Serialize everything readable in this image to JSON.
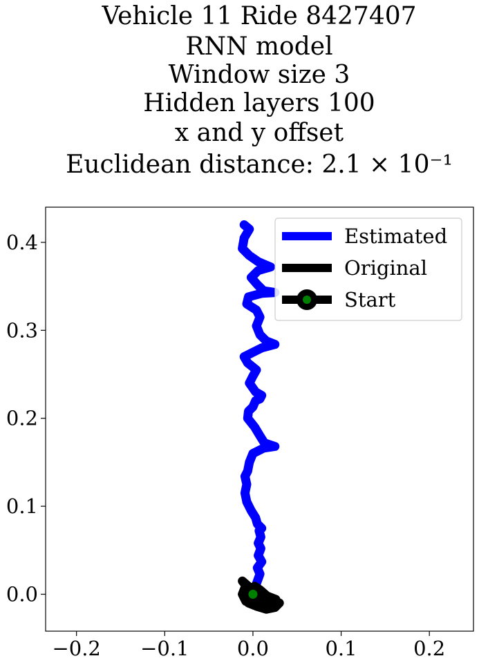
{
  "chart_data": {
    "type": "line",
    "title_lines": [
      "Vehicle 11 Ride 8427407",
      "RNN model",
      "Window size 3",
      "Hidden layers 100",
      "x and y offset",
      "Euclidean distance: 2.1 × 10⁻¹"
    ],
    "xlabel": "",
    "ylabel": "",
    "xlim": [
      -0.235,
      0.25
    ],
    "ylim": [
      -0.042,
      0.44
    ],
    "xticks": [
      -0.2,
      -0.1,
      0.0,
      0.1,
      0.2
    ],
    "xtick_labels": [
      "−0.2",
      "−0.1",
      "0.0",
      "0.1",
      "0.2"
    ],
    "yticks": [
      0.0,
      0.1,
      0.2,
      0.3,
      0.4
    ],
    "ytick_labels": [
      "0.0",
      "0.1",
      "0.2",
      "0.3",
      "0.4"
    ],
    "grid": false,
    "legend_position": "upper-right",
    "series": [
      {
        "name": "Estimated",
        "color": "#0000ff",
        "points": [
          [
            0.0,
            0.0
          ],
          [
            0.004,
            0.012
          ],
          [
            0.008,
            0.023
          ],
          [
            0.005,
            0.03
          ],
          [
            0.01,
            0.037
          ],
          [
            0.006,
            0.044
          ],
          [
            0.009,
            0.052
          ],
          [
            0.006,
            0.058
          ],
          [
            0.009,
            0.065
          ],
          [
            0.007,
            0.072
          ],
          [
            0.01,
            0.075
          ],
          [
            0.005,
            0.08
          ],
          [
            0.003,
            0.087
          ],
          [
            -0.002,
            0.095
          ],
          [
            -0.007,
            0.105
          ],
          [
            -0.009,
            0.115
          ],
          [
            -0.007,
            0.125
          ],
          [
            -0.009,
            0.134
          ],
          [
            -0.006,
            0.14
          ],
          [
            -0.004,
            0.15
          ],
          [
            0.0,
            0.16
          ],
          [
            0.012,
            0.166
          ],
          [
            0.025,
            0.168
          ],
          [
            0.013,
            0.172
          ],
          [
            0.008,
            0.18
          ],
          [
            0.002,
            0.19
          ],
          [
            -0.006,
            0.2
          ],
          [
            -0.005,
            0.208
          ],
          [
            0.0,
            0.213
          ],
          [
            0.003,
            0.22
          ],
          [
            0.008,
            0.222
          ],
          [
            0.01,
            0.226
          ],
          [
            0.003,
            0.23
          ],
          [
            -0.004,
            0.24
          ],
          [
            0.0,
            0.248
          ],
          [
            0.004,
            0.255
          ],
          [
            -0.006,
            0.263
          ],
          [
            -0.01,
            0.27
          ],
          [
            0.0,
            0.275
          ],
          [
            0.01,
            0.28
          ],
          [
            0.025,
            0.284
          ],
          [
            0.015,
            0.288
          ],
          [
            0.008,
            0.295
          ],
          [
            0.004,
            0.305
          ],
          [
            0.008,
            0.315
          ],
          [
            0.004,
            0.323
          ],
          [
            -0.007,
            0.33
          ],
          [
            -0.005,
            0.338
          ],
          [
            0.01,
            0.342
          ],
          [
            0.025,
            0.343
          ],
          [
            0.012,
            0.345
          ],
          [
            0.005,
            0.352
          ],
          [
            -0.002,
            0.36
          ],
          [
            0.006,
            0.368
          ],
          [
            0.02,
            0.372
          ],
          [
            0.006,
            0.378
          ],
          [
            -0.004,
            0.385
          ],
          [
            -0.012,
            0.393
          ],
          [
            -0.01,
            0.405
          ],
          [
            -0.004,
            0.415
          ],
          [
            -0.01,
            0.42
          ]
        ]
      },
      {
        "name": "Original",
        "color": "#000000",
        "points": [
          [
            0.0,
            0.0
          ],
          [
            0.01,
            -0.003
          ],
          [
            0.02,
            -0.006
          ],
          [
            0.03,
            -0.01
          ],
          [
            0.025,
            -0.015
          ],
          [
            0.015,
            -0.017
          ],
          [
            0.005,
            -0.014
          ],
          [
            -0.005,
            -0.01
          ],
          [
            -0.01,
            -0.004
          ],
          [
            -0.006,
            0.004
          ],
          [
            0.002,
            0.009
          ],
          [
            0.008,
            0.005
          ],
          [
            0.016,
            -0.002
          ],
          [
            0.026,
            -0.006
          ],
          [
            0.022,
            -0.012
          ],
          [
            0.012,
            -0.016
          ],
          [
            0.002,
            -0.012
          ],
          [
            -0.008,
            -0.008
          ],
          [
            -0.012,
            0.0
          ],
          [
            -0.008,
            0.01
          ],
          [
            -0.012,
            0.015
          ],
          [
            -0.004,
            0.008
          ],
          [
            0.006,
            -0.004
          ],
          [
            0.012,
            -0.012
          ],
          [
            0.0,
            -0.006
          ]
        ]
      }
    ],
    "start_marker": {
      "name": "Start",
      "x": 0.0,
      "y": 0.0,
      "fill_color": "#008000",
      "edge_color": "#000000"
    }
  }
}
